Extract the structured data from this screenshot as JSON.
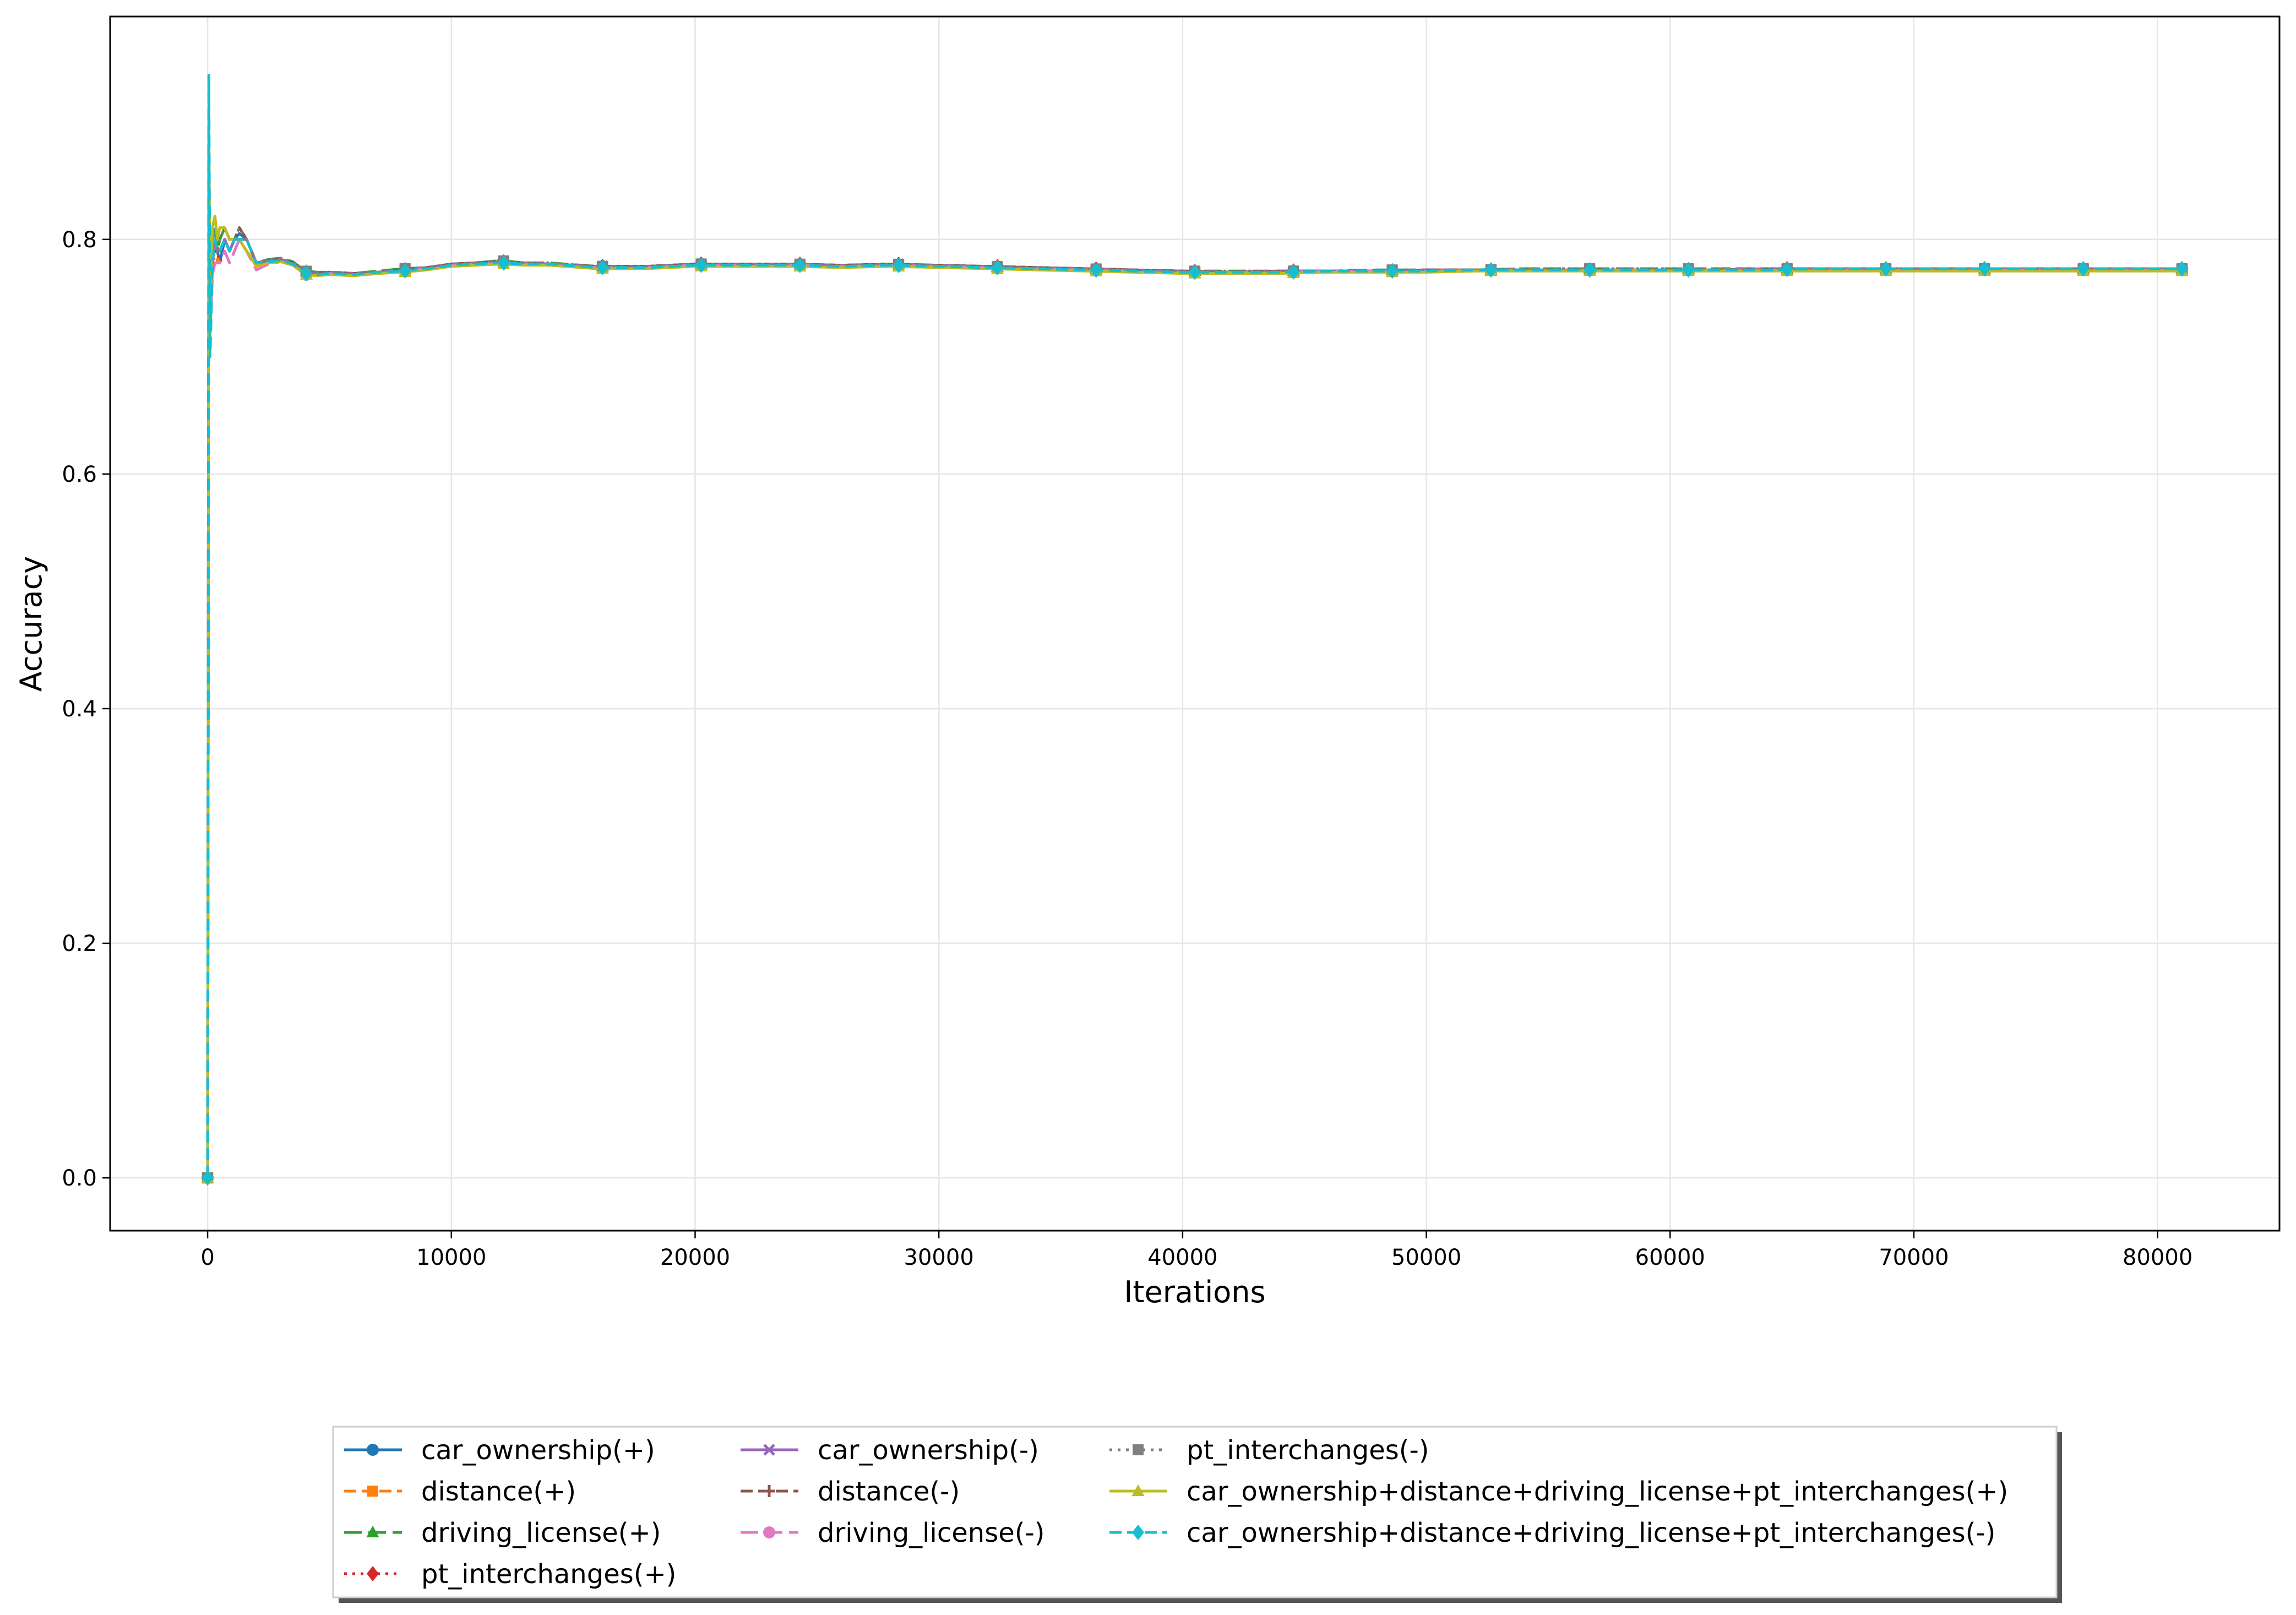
{
  "chart_data": {
    "type": "line",
    "xlabel": "Iterations",
    "ylabel": "Accuracy",
    "xlim": [
      -4000,
      85000
    ],
    "ylim": [
      -0.045,
      0.99
    ],
    "xticks": [
      0,
      10000,
      20000,
      30000,
      40000,
      50000,
      60000,
      70000,
      80000
    ],
    "yticks": [
      0.0,
      0.2,
      0.4,
      0.6,
      0.8
    ],
    "xtick_labels": [
      "0",
      "10000",
      "20000",
      "30000",
      "40000",
      "50000",
      "60000",
      "70000",
      "80000"
    ],
    "ytick_labels": [
      "0.0",
      "0.2",
      "0.4",
      "0.6",
      "0.8"
    ],
    "grid": true,
    "legend_position": "bottom-center (below plot)",
    "x": [
      0,
      50,
      100,
      200,
      300,
      400,
      500,
      700,
      900,
      1100,
      1300,
      1600,
      2000,
      2500,
      3000,
      3500,
      4000,
      4500,
      5000,
      6000,
      7000,
      8000,
      9000,
      10000,
      11000,
      12000,
      13000,
      14000,
      16000,
      18000,
      20000,
      22000,
      24000,
      26000,
      28000,
      30000,
      32000,
      34000,
      36000,
      38000,
      40000,
      42000,
      44000,
      46000,
      48000,
      50000,
      52000,
      54000,
      56000,
      58000,
      60000,
      62000,
      64000,
      66000,
      68000,
      70000,
      72000,
      74000,
      76000,
      78000,
      80000,
      81000
    ],
    "series": [
      {
        "name": "car_ownership(+)",
        "color": "#1f77b4",
        "dash": "solid",
        "marker": "circle",
        "values": [
          0.0,
          0.85,
          0.72,
          0.78,
          0.8,
          0.79,
          0.78,
          0.8,
          0.79,
          0.8,
          0.805,
          0.8,
          0.78,
          0.782,
          0.783,
          0.78,
          0.772,
          0.771,
          0.772,
          0.771,
          0.772,
          0.774,
          0.776,
          0.779,
          0.78,
          0.781,
          0.78,
          0.779,
          0.777,
          0.777,
          0.779,
          0.779,
          0.779,
          0.778,
          0.778,
          0.778,
          0.777,
          0.776,
          0.775,
          0.774,
          0.773,
          0.772,
          0.773,
          0.773,
          0.773,
          0.774,
          0.774,
          0.774,
          0.774,
          0.774,
          0.774,
          0.774,
          0.775,
          0.775,
          0.775,
          0.775,
          0.775,
          0.775,
          0.775,
          0.775,
          0.775,
          0.775
        ]
      },
      {
        "name": "distance(+)",
        "color": "#ff7f0e",
        "dash": "dashed",
        "marker": "square",
        "values": [
          0.0,
          0.84,
          0.73,
          0.79,
          0.8,
          0.78,
          0.79,
          0.8,
          0.79,
          0.8,
          0.8,
          0.79,
          0.779,
          0.781,
          0.782,
          0.779,
          0.771,
          0.77,
          0.771,
          0.77,
          0.772,
          0.773,
          0.775,
          0.778,
          0.779,
          0.78,
          0.779,
          0.779,
          0.776,
          0.776,
          0.778,
          0.778,
          0.778,
          0.777,
          0.778,
          0.777,
          0.776,
          0.775,
          0.774,
          0.773,
          0.772,
          0.772,
          0.772,
          0.773,
          0.773,
          0.773,
          0.774,
          0.774,
          0.774,
          0.774,
          0.774,
          0.774,
          0.774,
          0.774,
          0.774,
          0.774,
          0.774,
          0.774,
          0.774,
          0.774,
          0.774,
          0.774
        ]
      },
      {
        "name": "driving_license(+)",
        "color": "#2ca02c",
        "dash": "longdash",
        "marker": "triangle",
        "values": [
          0.0,
          0.88,
          0.74,
          0.8,
          0.81,
          0.79,
          0.8,
          0.81,
          0.8,
          0.8,
          0.81,
          0.8,
          0.78,
          0.783,
          0.784,
          0.781,
          0.773,
          0.772,
          0.772,
          0.771,
          0.773,
          0.775,
          0.776,
          0.779,
          0.78,
          0.782,
          0.78,
          0.78,
          0.777,
          0.777,
          0.779,
          0.779,
          0.779,
          0.778,
          0.779,
          0.778,
          0.777,
          0.776,
          0.775,
          0.774,
          0.773,
          0.773,
          0.773,
          0.773,
          0.774,
          0.774,
          0.774,
          0.775,
          0.775,
          0.775,
          0.775,
          0.775,
          0.775,
          0.775,
          0.775,
          0.775,
          0.775,
          0.775,
          0.775,
          0.775,
          0.775,
          0.775
        ]
      },
      {
        "name": "pt_interchanges(+)",
        "color": "#d62728",
        "dash": "dotted",
        "marker": "diamond",
        "values": [
          0.0,
          0.86,
          0.73,
          0.78,
          0.79,
          0.79,
          0.78,
          0.79,
          0.79,
          0.8,
          0.8,
          0.79,
          0.779,
          0.781,
          0.782,
          0.78,
          0.771,
          0.771,
          0.772,
          0.771,
          0.772,
          0.774,
          0.776,
          0.779,
          0.78,
          0.781,
          0.78,
          0.779,
          0.777,
          0.777,
          0.779,
          0.779,
          0.779,
          0.778,
          0.779,
          0.778,
          0.777,
          0.776,
          0.775,
          0.774,
          0.773,
          0.772,
          0.773,
          0.773,
          0.773,
          0.774,
          0.774,
          0.774,
          0.774,
          0.774,
          0.774,
          0.774,
          0.775,
          0.775,
          0.775,
          0.775,
          0.775,
          0.775,
          0.775,
          0.775,
          0.775,
          0.775
        ]
      },
      {
        "name": "car_ownership(-)",
        "color": "#9467bd",
        "dash": "solid",
        "marker": "x",
        "values": [
          0.0,
          0.87,
          0.72,
          0.79,
          0.8,
          0.79,
          0.79,
          0.8,
          0.79,
          0.8,
          0.8,
          0.8,
          0.78,
          0.782,
          0.783,
          0.78,
          0.772,
          0.771,
          0.772,
          0.771,
          0.772,
          0.774,
          0.776,
          0.779,
          0.78,
          0.781,
          0.78,
          0.779,
          0.777,
          0.777,
          0.779,
          0.779,
          0.779,
          0.778,
          0.779,
          0.778,
          0.777,
          0.776,
          0.775,
          0.774,
          0.773,
          0.772,
          0.773,
          0.773,
          0.773,
          0.774,
          0.774,
          0.774,
          0.774,
          0.774,
          0.774,
          0.774,
          0.775,
          0.775,
          0.775,
          0.775,
          0.775,
          0.775,
          0.775,
          0.775,
          0.775,
          0.775
        ]
      },
      {
        "name": "distance(-)",
        "color": "#8c564b",
        "dash": "dashed",
        "marker": "plus",
        "values": [
          0.0,
          0.85,
          0.73,
          0.79,
          0.8,
          0.79,
          0.79,
          0.8,
          0.8,
          0.8,
          0.81,
          0.8,
          0.78,
          0.782,
          0.783,
          0.78,
          0.772,
          0.771,
          0.772,
          0.771,
          0.772,
          0.774,
          0.776,
          0.779,
          0.78,
          0.781,
          0.78,
          0.779,
          0.777,
          0.777,
          0.779,
          0.779,
          0.779,
          0.778,
          0.779,
          0.778,
          0.777,
          0.776,
          0.775,
          0.774,
          0.773,
          0.772,
          0.773,
          0.773,
          0.773,
          0.774,
          0.774,
          0.774,
          0.774,
          0.774,
          0.774,
          0.774,
          0.775,
          0.775,
          0.775,
          0.775,
          0.775,
          0.775,
          0.775,
          0.775,
          0.775,
          0.775
        ]
      },
      {
        "name": "driving_license(-)",
        "color": "#e377c2",
        "dash": "longdash",
        "marker": "circle",
        "values": [
          0.0,
          0.83,
          0.72,
          0.77,
          0.78,
          0.78,
          0.78,
          0.79,
          0.78,
          0.79,
          0.8,
          0.79,
          0.774,
          0.779,
          0.781,
          0.778,
          0.77,
          0.769,
          0.771,
          0.769,
          0.771,
          0.773,
          0.775,
          0.778,
          0.779,
          0.78,
          0.779,
          0.778,
          0.776,
          0.776,
          0.778,
          0.778,
          0.778,
          0.777,
          0.778,
          0.777,
          0.776,
          0.775,
          0.774,
          0.773,
          0.772,
          0.772,
          0.772,
          0.773,
          0.773,
          0.773,
          0.774,
          0.774,
          0.774,
          0.774,
          0.774,
          0.774,
          0.774,
          0.774,
          0.774,
          0.774,
          0.774,
          0.774,
          0.774,
          0.774,
          0.774,
          0.774
        ]
      },
      {
        "name": "pt_interchanges(-)",
        "color": "#7f7f7f",
        "dash": "dotted",
        "marker": "square",
        "values": [
          0.0,
          0.86,
          0.73,
          0.8,
          0.81,
          0.79,
          0.8,
          0.81,
          0.8,
          0.8,
          0.81,
          0.8,
          0.78,
          0.783,
          0.784,
          0.781,
          0.773,
          0.772,
          0.772,
          0.771,
          0.773,
          0.775,
          0.776,
          0.779,
          0.78,
          0.782,
          0.78,
          0.78,
          0.777,
          0.777,
          0.779,
          0.779,
          0.779,
          0.778,
          0.779,
          0.778,
          0.777,
          0.776,
          0.775,
          0.774,
          0.773,
          0.773,
          0.773,
          0.773,
          0.774,
          0.774,
          0.774,
          0.775,
          0.775,
          0.775,
          0.775,
          0.775,
          0.775,
          0.775,
          0.775,
          0.775,
          0.775,
          0.775,
          0.775,
          0.775,
          0.775,
          0.775
        ]
      },
      {
        "name": "car_ownership+distance+driving_license+pt_interchanges(+)",
        "color": "#bcbd22",
        "dash": "solid",
        "marker": "triangle",
        "values": [
          0.0,
          0.9,
          0.74,
          0.81,
          0.82,
          0.8,
          0.81,
          0.81,
          0.8,
          0.8,
          0.8,
          0.79,
          0.777,
          0.78,
          0.781,
          0.778,
          0.77,
          0.769,
          0.77,
          0.769,
          0.771,
          0.772,
          0.774,
          0.777,
          0.778,
          0.779,
          0.778,
          0.778,
          0.775,
          0.775,
          0.777,
          0.777,
          0.777,
          0.776,
          0.777,
          0.776,
          0.775,
          0.774,
          0.773,
          0.772,
          0.771,
          0.771,
          0.771,
          0.772,
          0.772,
          0.772,
          0.773,
          0.773,
          0.773,
          0.773,
          0.773,
          0.773,
          0.773,
          0.773,
          0.773,
          0.773,
          0.773,
          0.773,
          0.773,
          0.773,
          0.773,
          0.773
        ]
      },
      {
        "name": "car_ownership+distance+driving_license+pt_interchanges(-)",
        "color": "#17becf",
        "dash": "dashed",
        "marker": "diamond",
        "values": [
          0.0,
          0.94,
          0.7,
          0.78,
          0.8,
          0.79,
          0.79,
          0.8,
          0.79,
          0.8,
          0.8,
          0.8,
          0.78,
          0.781,
          0.782,
          0.779,
          0.771,
          0.77,
          0.771,
          0.77,
          0.772,
          0.773,
          0.775,
          0.778,
          0.779,
          0.78,
          0.779,
          0.779,
          0.776,
          0.776,
          0.778,
          0.778,
          0.778,
          0.777,
          0.778,
          0.777,
          0.776,
          0.775,
          0.774,
          0.773,
          0.772,
          0.772,
          0.772,
          0.773,
          0.773,
          0.773,
          0.774,
          0.774,
          0.774,
          0.774,
          0.774,
          0.774,
          0.774,
          0.775,
          0.775,
          0.775,
          0.775,
          0.775,
          0.775,
          0.775,
          0.775,
          0.775
        ]
      }
    ],
    "marker_x": [
      0,
      4050,
      8100,
      12150,
      16200,
      20250,
      24300,
      28350,
      32400,
      36450,
      40500,
      44550,
      48600,
      52650,
      56700,
      60750,
      64800,
      68850,
      72900,
      76950,
      81000
    ]
  }
}
